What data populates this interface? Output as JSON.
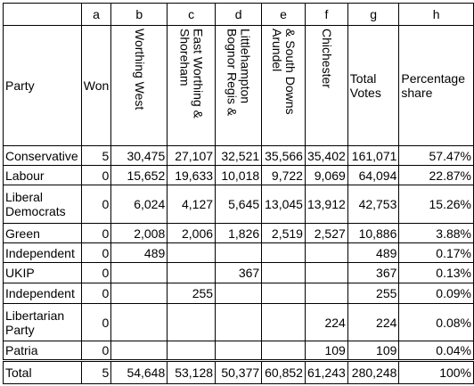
{
  "table": {
    "letters": [
      "a",
      "b",
      "c",
      "d",
      "e",
      "f",
      "g",
      "h"
    ],
    "headers": {
      "party": "Party",
      "won": "Won",
      "constituencies": [
        [
          "Worthing West"
        ],
        [
          "East Worthing &",
          "Shoreham"
        ],
        [
          "Bognor Regis &",
          "Littlehampton"
        ],
        [
          "Arundel",
          "& South Downs"
        ],
        [
          "Chichester"
        ]
      ],
      "total_votes": "Total Votes",
      "share": "Percentage share"
    },
    "rows": [
      [
        "Conservative",
        "5",
        "30,475",
        "27,107",
        "32,521",
        "35,566",
        "35,402",
        "161,071",
        "57.47%"
      ],
      [
        "Labour",
        "0",
        "15,652",
        "19,633",
        "10,018",
        "9,722",
        "9,069",
        "64,094",
        "22.87%"
      ],
      [
        "Liberal Democrats",
        "0",
        "6,024",
        "4,127",
        "5,645",
        "13,045",
        "13,912",
        "42,753",
        "15.26%"
      ],
      [
        "Green",
        "0",
        "2,008",
        "2,006",
        "1,826",
        "2,519",
        "2,527",
        "10,886",
        "3.88%"
      ],
      [
        "Independent",
        "0",
        "489",
        null,
        null,
        null,
        null,
        "489",
        "0.17%"
      ],
      [
        "UKIP",
        "0",
        null,
        null,
        "367",
        null,
        null,
        "367",
        "0.13%"
      ],
      [
        "Independent",
        "0",
        null,
        "255",
        null,
        null,
        null,
        "255",
        "0.09%"
      ],
      [
        "Libertarian Party",
        "0",
        null,
        null,
        null,
        null,
        "224",
        "224",
        "0.08%"
      ],
      [
        "Patria",
        "0",
        null,
        null,
        null,
        null,
        "109",
        "109",
        "0.04%"
      ]
    ],
    "total": [
      "Total",
      "5",
      "54,648",
      "53,128",
      "50,377",
      "60,852",
      "61,243",
      "280,248",
      "100%"
    ]
  }
}
